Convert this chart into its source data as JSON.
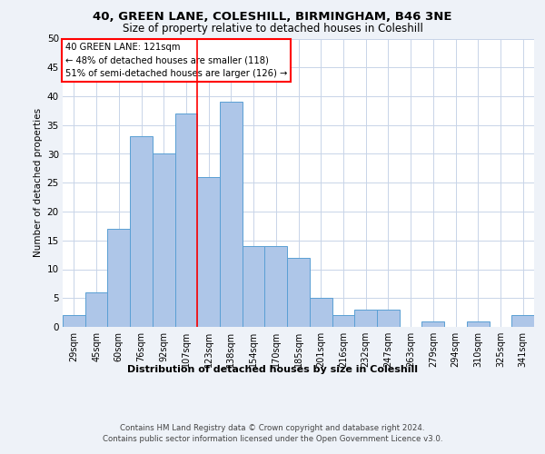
{
  "title1": "40, GREEN LANE, COLESHILL, BIRMINGHAM, B46 3NE",
  "title2": "Size of property relative to detached houses in Coleshill",
  "xlabel": "Distribution of detached houses by size in Coleshill",
  "ylabel": "Number of detached properties",
  "bin_labels": [
    "29sqm",
    "45sqm",
    "60sqm",
    "76sqm",
    "92sqm",
    "107sqm",
    "123sqm",
    "138sqm",
    "154sqm",
    "170sqm",
    "185sqm",
    "201sqm",
    "216sqm",
    "232sqm",
    "247sqm",
    "263sqm",
    "279sqm",
    "294sqm",
    "310sqm",
    "325sqm",
    "341sqm"
  ],
  "bar_values": [
    2,
    6,
    17,
    33,
    30,
    37,
    26,
    39,
    14,
    14,
    12,
    5,
    2,
    3,
    3,
    0,
    1,
    0,
    1,
    0,
    2
  ],
  "bar_color": "#aec6e8",
  "bar_edge_color": "#5a9fd4",
  "vline_x_idx": 6,
  "vline_color": "red",
  "annotation_text": "40 GREEN LANE: 121sqm\n← 48% of detached houses are smaller (118)\n51% of semi-detached houses are larger (126) →",
  "annotation_box_color": "white",
  "annotation_box_edge": "red",
  "ylim": [
    0,
    50
  ],
  "yticks": [
    0,
    5,
    10,
    15,
    20,
    25,
    30,
    35,
    40,
    45,
    50
  ],
  "footer": "Contains HM Land Registry data © Crown copyright and database right 2024.\nContains public sector information licensed under the Open Government Licence v3.0.",
  "bg_color": "#eef2f8",
  "plot_bg_color": "#ffffff",
  "grid_color": "#c8d4e8"
}
